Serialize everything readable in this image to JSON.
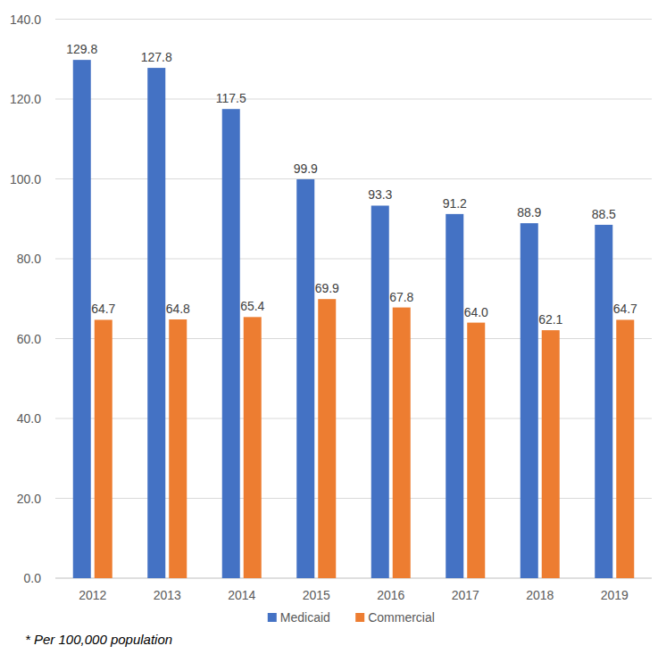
{
  "chart_data": {
    "type": "bar",
    "categories": [
      "2012",
      "2013",
      "2014",
      "2015",
      "2016",
      "2017",
      "2018",
      "2019"
    ],
    "series": [
      {
        "name": "Medicaid",
        "color": "#4472c4",
        "values": [
          129.8,
          127.8,
          117.5,
          99.9,
          93.3,
          91.2,
          88.9,
          88.5
        ],
        "value_labels": [
          "129.8",
          "127.8",
          "117.5",
          "99.9",
          "93.3",
          "91.2",
          "88.9",
          "88.5"
        ]
      },
      {
        "name": "Commercial",
        "color": "#ed7d31",
        "values": [
          64.7,
          64.8,
          65.4,
          69.9,
          67.8,
          64.0,
          62.1,
          64.7
        ],
        "value_labels": [
          "64.7",
          "64.8",
          "65.4",
          "69.9",
          "67.8",
          "64.0",
          "62.1",
          "64.7"
        ]
      }
    ],
    "ylim": [
      0,
      140
    ],
    "yticks": [
      {
        "value": 0,
        "label": "0.0"
      },
      {
        "value": 20,
        "label": "20.0"
      },
      {
        "value": 40,
        "label": "40.0"
      },
      {
        "value": 60,
        "label": "60.0"
      },
      {
        "value": 80,
        "label": "80.0"
      },
      {
        "value": 100,
        "label": "100.0"
      },
      {
        "value": 120,
        "label": "120.0"
      },
      {
        "value": 140,
        "label": "140.0"
      }
    ],
    "grid": true,
    "legend": "bottom",
    "data_labels": true,
    "annotations": [
      "* Per 100,000 population"
    ]
  }
}
